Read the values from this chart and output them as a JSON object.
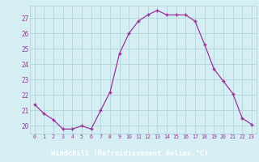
{
  "x": [
    0,
    1,
    2,
    3,
    4,
    5,
    6,
    7,
    8,
    9,
    10,
    11,
    12,
    13,
    14,
    15,
    16,
    17,
    18,
    19,
    20,
    21,
    22,
    23
  ],
  "y": [
    21.4,
    20.8,
    20.4,
    19.8,
    19.8,
    20.0,
    19.8,
    21.0,
    22.2,
    24.7,
    26.0,
    26.8,
    27.2,
    27.5,
    27.2,
    27.2,
    27.2,
    26.8,
    25.3,
    23.7,
    22.9,
    22.1,
    20.5,
    20.1
  ],
  "line_color": "#993399",
  "marker": "+",
  "marker_size": 3,
  "bg_color": "#d4eef4",
  "grid_color": "#b8d8e0",
  "xlabel": "Windchill (Refroidissement éolien,°C)",
  "xlabel_color": "#ffffff",
  "xlabel_bg": "#993399",
  "ylabel_ticks": [
    20,
    21,
    22,
    23,
    24,
    25,
    26,
    27
  ],
  "xtick_labels": [
    "0",
    "1",
    "2",
    "3",
    "4",
    "5",
    "6",
    "7",
    "8",
    "9",
    "10",
    "11",
    "12",
    "13",
    "14",
    "15",
    "16",
    "17",
    "18",
    "19",
    "20",
    "21",
    "22",
    "23"
  ],
  "xlim": [
    -0.5,
    23.5
  ],
  "ylim": [
    19.5,
    27.8
  ]
}
